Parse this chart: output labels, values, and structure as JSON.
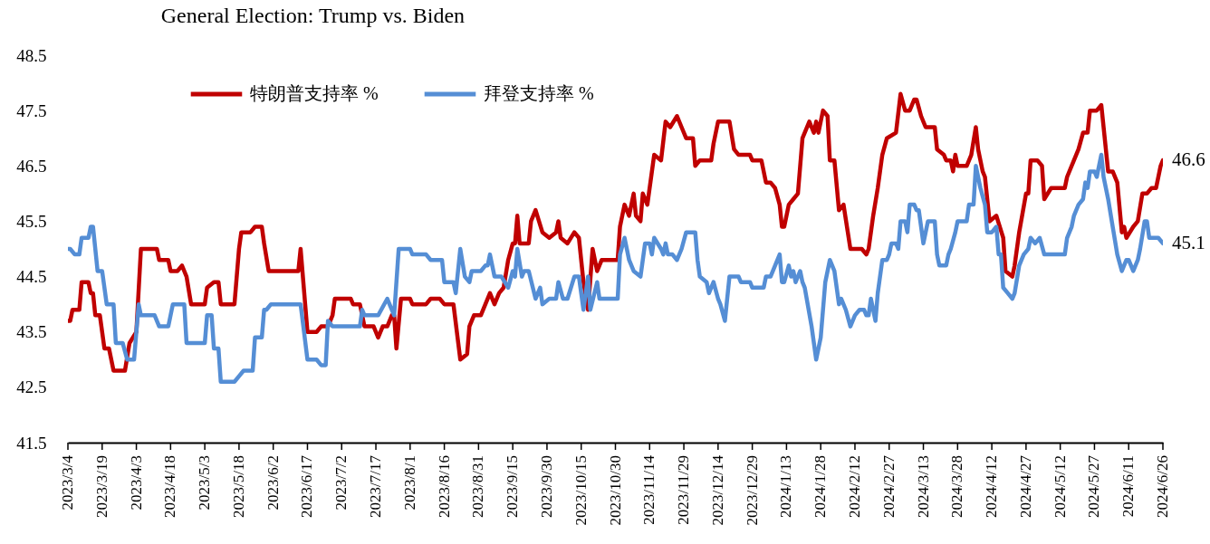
{
  "chart_data": {
    "type": "line",
    "title": "General Election: Trump vs. Biden",
    "xlim": [
      "2023-03-04",
      "2024-06-26"
    ],
    "xticks": [
      {
        "value": "2023-03-04",
        "label": "2023/3/4"
      },
      {
        "value": "2023-03-19",
        "label": "2023/3/19"
      },
      {
        "value": "2023-04-03",
        "label": "2023/4/3"
      },
      {
        "value": "2023-04-18",
        "label": "2023/4/18"
      },
      {
        "value": "2023-05-03",
        "label": "2023/5/3"
      },
      {
        "value": "2023-05-18",
        "label": "2023/5/18"
      },
      {
        "value": "2023-06-02",
        "label": "2023/6/2"
      },
      {
        "value": "2023-06-17",
        "label": "2023/6/17"
      },
      {
        "value": "2023-07-02",
        "label": "2023/7/2"
      },
      {
        "value": "2023-07-17",
        "label": "2023/7/17"
      },
      {
        "value": "2023-08-01",
        "label": "2023/8/1"
      },
      {
        "value": "2023-08-16",
        "label": "2023/8/16"
      },
      {
        "value": "2023-08-31",
        "label": "2023/8/31"
      },
      {
        "value": "2023-09-15",
        "label": "2023/9/15"
      },
      {
        "value": "2023-09-30",
        "label": "2023/9/30"
      },
      {
        "value": "2023-10-15",
        "label": "2023/10/15"
      },
      {
        "value": "2023-10-30",
        "label": "2023/10/30"
      },
      {
        "value": "2023-11-14",
        "label": "2023/11/14"
      },
      {
        "value": "2023-11-29",
        "label": "2023/11/29"
      },
      {
        "value": "2023-12-14",
        "label": "2023/12/14"
      },
      {
        "value": "2023-12-29",
        "label": "2023/12/29"
      },
      {
        "value": "2024-01-13",
        "label": "2024/1/13"
      },
      {
        "value": "2024-01-28",
        "label": "2024/1/28"
      },
      {
        "value": "2024-02-12",
        "label": "2024/2/12"
      },
      {
        "value": "2024-02-27",
        "label": "2024/2/27"
      },
      {
        "value": "2024-03-13",
        "label": "2024/3/13"
      },
      {
        "value": "2024-03-28",
        "label": "2024/3/28"
      },
      {
        "value": "2024-04-12",
        "label": "2024/4/12"
      },
      {
        "value": "2024-04-27",
        "label": "2024/4/27"
      },
      {
        "value": "2024-05-12",
        "label": "2024/5/12"
      },
      {
        "value": "2024-05-27",
        "label": "2024/5/27"
      },
      {
        "value": "2024-06-11",
        "label": "2024/6/11"
      },
      {
        "value": "2024-06-26",
        "label": "2024/6/26"
      }
    ],
    "ylim": [
      41.5,
      48.5
    ],
    "yticks": [
      41.5,
      42.5,
      43.5,
      44.5,
      45.5,
      46.5,
      47.5,
      48.5
    ],
    "legend": "top",
    "annotations": [
      {
        "text": "46.6",
        "x": "2024-06-26",
        "y": 46.6
      },
      {
        "text": "45.1",
        "x": "2024-06-26",
        "y": 45.1
      }
    ],
    "series": [
      {
        "name": "特朗普支持率 %",
        "color": "#c00000",
        "x": [
          "2023-03-04",
          "2023-03-05",
          "2023-03-06",
          "2023-03-09",
          "2023-03-10",
          "2023-03-13",
          "2023-03-14",
          "2023-03-15",
          "2023-03-16",
          "2023-03-18",
          "2023-03-20",
          "2023-03-22",
          "2023-03-24",
          "2023-03-29",
          "2023-03-31",
          "2023-04-03",
          "2023-04-05",
          "2023-04-12",
          "2023-04-13",
          "2023-04-17",
          "2023-04-18",
          "2023-04-21",
          "2023-04-23",
          "2023-04-25",
          "2023-04-27",
          "2023-05-03",
          "2023-05-04",
          "2023-05-07",
          "2023-05-09",
          "2023-05-10",
          "2023-05-16",
          "2023-05-18",
          "2023-05-19",
          "2023-05-23",
          "2023-05-25",
          "2023-05-28",
          "2023-05-29",
          "2023-05-31",
          "2023-06-13",
          "2023-06-14",
          "2023-06-16",
          "2023-06-17",
          "2023-06-21",
          "2023-06-23",
          "2023-06-26",
          "2023-06-28",
          "2023-06-29",
          "2023-07-06",
          "2023-07-07",
          "2023-07-10",
          "2023-07-12",
          "2023-07-16",
          "2023-07-18",
          "2023-07-20",
          "2023-07-22",
          "2023-07-24",
          "2023-07-25",
          "2023-07-26",
          "2023-07-28",
          "2023-08-01",
          "2023-08-02",
          "2023-08-08",
          "2023-08-10",
          "2023-08-14",
          "2023-08-16",
          "2023-08-20",
          "2023-08-23",
          "2023-08-26",
          "2023-08-27",
          "2023-08-29",
          "2023-09-01",
          "2023-09-03",
          "2023-09-05",
          "2023-09-07",
          "2023-09-09",
          "2023-09-11",
          "2023-09-13",
          "2023-09-15",
          "2023-09-16",
          "2023-09-17",
          "2023-09-18",
          "2023-09-22",
          "2023-09-23",
          "2023-09-25",
          "2023-09-28",
          "2023-10-01",
          "2023-10-04",
          "2023-10-05",
          "2023-10-06",
          "2023-10-09",
          "2023-10-12",
          "2023-10-14",
          "2023-10-16",
          "2023-10-18",
          "2023-10-20",
          "2023-10-22",
          "2023-10-24",
          "2023-10-31",
          "2023-11-01",
          "2023-11-03",
          "2023-11-05",
          "2023-11-07",
          "2023-11-08",
          "2023-11-10",
          "2023-11-11",
          "2023-11-13",
          "2023-11-16",
          "2023-11-19",
          "2023-11-21",
          "2023-11-23",
          "2023-11-26",
          "2023-11-28",
          "2023-11-30",
          "2023-12-03",
          "2023-12-04",
          "2023-12-06",
          "2023-12-11",
          "2023-12-12",
          "2023-12-14",
          "2023-12-19",
          "2023-12-21",
          "2023-12-23",
          "2023-12-28",
          "2023-12-29",
          "2024-01-02",
          "2024-01-04",
          "2024-01-06",
          "2024-01-08",
          "2024-01-10",
          "2024-01-11",
          "2024-01-12",
          "2024-01-14",
          "2024-01-16",
          "2024-01-18",
          "2024-01-20",
          "2024-01-23",
          "2024-01-25",
          "2024-01-26",
          "2024-01-27",
          "2024-01-29",
          "2024-01-31",
          "2024-02-01",
          "2024-02-03",
          "2024-02-05",
          "2024-02-07",
          "2024-02-10",
          "2024-02-15",
          "2024-02-17",
          "2024-02-18",
          "2024-02-20",
          "2024-02-22",
          "2024-02-24",
          "2024-02-26",
          "2024-03-01",
          "2024-03-03",
          "2024-03-05",
          "2024-03-07",
          "2024-03-09",
          "2024-03-10",
          "2024-03-12",
          "2024-03-14",
          "2024-03-18",
          "2024-03-19",
          "2024-03-22",
          "2024-03-23",
          "2024-03-25",
          "2024-03-26",
          "2024-03-27",
          "2024-03-28",
          "2024-04-01",
          "2024-04-03",
          "2024-04-05",
          "2024-04-06",
          "2024-04-08",
          "2024-04-09",
          "2024-04-11",
          "2024-04-14",
          "2024-04-17",
          "2024-04-18",
          "2024-04-21",
          "2024-04-22",
          "2024-04-24",
          "2024-04-27",
          "2024-04-28",
          "2024-04-29",
          "2024-05-02",
          "2024-05-04",
          "2024-05-05",
          "2024-05-08",
          "2024-05-14",
          "2024-05-15",
          "2024-05-18",
          "2024-05-20",
          "2024-05-22",
          "2024-05-24",
          "2024-05-25",
          "2024-05-28",
          "2024-05-30",
          "2024-05-31",
          "2024-06-02",
          "2024-06-04",
          "2024-06-06",
          "2024-06-08",
          "2024-06-09",
          "2024-06-10",
          "2024-06-13",
          "2024-06-15",
          "2024-06-17",
          "2024-06-19",
          "2024-06-21",
          "2024-06-23",
          "2024-06-25",
          "2024-06-26"
        ],
        "values": [
          43.7,
          43.7,
          43.9,
          43.9,
          44.4,
          44.4,
          44.2,
          44.2,
          43.8,
          43.8,
          43.2,
          43.2,
          42.8,
          42.8,
          43.3,
          43.5,
          45.0,
          45.0,
          44.8,
          44.8,
          44.6,
          44.6,
          44.7,
          44.5,
          44.0,
          44.0,
          44.3,
          44.4,
          44.4,
          44.0,
          44.0,
          45.0,
          45.3,
          45.3,
          45.4,
          45.4,
          45.1,
          44.6,
          44.6,
          45.0,
          44.0,
          43.5,
          43.5,
          43.6,
          43.6,
          43.8,
          44.1,
          44.1,
          44.0,
          44.0,
          43.6,
          43.6,
          43.4,
          43.6,
          43.6,
          43.8,
          43.8,
          43.2,
          44.1,
          44.1,
          44.0,
          44.0,
          44.1,
          44.1,
          44.0,
          44.0,
          43.0,
          43.1,
          43.6,
          43.8,
          43.8,
          44.0,
          44.2,
          44.0,
          44.2,
          44.3,
          44.8,
          45.1,
          45.1,
          45.6,
          45.1,
          45.1,
          45.5,
          45.7,
          45.3,
          45.2,
          45.3,
          45.5,
          45.2,
          45.1,
          45.3,
          45.2,
          44.4,
          43.9,
          45.0,
          44.6,
          44.8,
          44.8,
          45.4,
          45.8,
          45.6,
          46.0,
          45.6,
          45.5,
          46.0,
          45.8,
          46.7,
          46.6,
          47.3,
          47.2,
          47.4,
          47.2,
          47.0,
          47.0,
          46.5,
          46.6,
          46.6,
          46.9,
          47.3,
          47.3,
          46.8,
          46.7,
          46.7,
          46.6,
          46.6,
          46.2,
          46.2,
          46.1,
          45.8,
          45.4,
          45.4,
          45.8,
          45.9,
          46.0,
          47.0,
          47.3,
          47.1,
          47.3,
          47.1,
          47.5,
          47.4,
          46.6,
          46.6,
          45.7,
          45.8,
          45.0,
          45.0,
          44.9,
          45.0,
          45.6,
          46.1,
          46.7,
          47.0,
          47.1,
          47.8,
          47.5,
          47.5,
          47.7,
          47.7,
          47.4,
          47.2,
          47.2,
          46.8,
          46.7,
          46.6,
          46.6,
          46.4,
          46.7,
          46.5,
          46.5,
          46.7,
          47.2,
          46.8,
          46.4,
          46.3,
          45.5,
          45.6,
          45.2,
          44.6,
          44.5,
          44.7,
          45.3,
          46.0,
          46.0,
          46.6,
          46.6,
          46.5,
          45.9,
          46.1,
          46.1,
          46.3,
          46.6,
          46.8,
          47.1,
          47.1,
          47.5,
          47.5,
          47.6,
          47.2,
          46.4,
          46.4,
          46.2,
          45.3,
          45.4,
          45.2,
          45.4,
          45.5,
          46.0,
          46.0,
          46.1,
          46.1,
          46.5,
          46.6
        ]
      },
      {
        "name": "拜登支持率 %",
        "color": "#558ed5",
        "x": [
          "2023-03-04",
          "2023-03-05",
          "2023-03-07",
          "2023-03-09",
          "2023-03-10",
          "2023-03-13",
          "2023-03-14",
          "2023-03-15",
          "2023-03-17",
          "2023-03-19",
          "2023-03-21",
          "2023-03-24",
          "2023-03-25",
          "2023-03-28",
          "2023-03-30",
          "2023-04-02",
          "2023-04-03",
          "2023-04-04",
          "2023-04-05",
          "2023-04-11",
          "2023-04-13",
          "2023-04-17",
          "2023-04-19",
          "2023-04-24",
          "2023-04-25",
          "2023-05-03",
          "2023-05-04",
          "2023-05-06",
          "2023-05-07",
          "2023-05-09",
          "2023-05-10",
          "2023-05-16",
          "2023-05-18",
          "2023-05-20",
          "2023-05-24",
          "2023-05-25",
          "2023-05-28",
          "2023-05-29",
          "2023-05-30",
          "2023-06-01",
          "2023-06-14",
          "2023-06-17",
          "2023-06-21",
          "2023-06-23",
          "2023-06-25",
          "2023-06-26",
          "2023-06-28",
          "2023-07-06",
          "2023-07-10",
          "2023-07-11",
          "2023-07-12",
          "2023-07-18",
          "2023-07-22",
          "2023-07-25",
          "2023-07-27",
          "2023-08-01",
          "2023-08-02",
          "2023-08-08",
          "2023-08-10",
          "2023-08-15",
          "2023-08-16",
          "2023-08-20",
          "2023-08-21",
          "2023-08-23",
          "2023-08-25",
          "2023-08-27",
          "2023-08-28",
          "2023-09-01",
          "2023-09-03",
          "2023-09-04",
          "2023-09-05",
          "2023-09-07",
          "2023-09-10",
          "2023-09-13",
          "2023-09-15",
          "2023-09-16",
          "2023-09-17",
          "2023-09-19",
          "2023-09-20",
          "2023-09-22",
          "2023-09-25",
          "2023-09-27",
          "2023-09-28",
          "2023-10-01",
          "2023-10-04",
          "2023-10-05",
          "2023-10-07",
          "2023-10-09",
          "2023-10-12",
          "2023-10-14",
          "2023-10-16",
          "2023-10-18",
          "2023-10-19",
          "2023-10-22",
          "2023-10-23",
          "2023-10-31",
          "2023-11-01",
          "2023-11-03",
          "2023-11-05",
          "2023-11-07",
          "2023-11-10",
          "2023-11-12",
          "2023-11-14",
          "2023-11-15",
          "2023-11-16",
          "2023-11-19",
          "2023-11-20",
          "2023-11-21",
          "2023-11-22",
          "2023-11-24",
          "2023-11-26",
          "2023-11-28",
          "2023-11-30",
          "2023-12-04",
          "2023-12-05",
          "2023-12-06",
          "2023-12-09",
          "2023-12-10",
          "2023-12-12",
          "2023-12-14",
          "2023-12-15",
          "2023-12-17",
          "2023-12-19",
          "2023-12-23",
          "2023-12-24",
          "2023-12-28",
          "2023-12-29",
          "2024-01-03",
          "2024-01-04",
          "2024-01-06",
          "2024-01-08",
          "2024-01-10",
          "2024-01-11",
          "2024-01-12",
          "2024-01-14",
          "2024-01-15",
          "2024-01-16",
          "2024-01-17",
          "2024-01-19",
          "2024-01-20",
          "2024-01-21",
          "2024-01-24",
          "2024-01-26",
          "2024-01-28",
          "2024-01-30",
          "2024-02-01",
          "2024-02-03",
          "2024-02-05",
          "2024-02-06",
          "2024-02-08",
          "2024-02-10",
          "2024-02-12",
          "2024-02-14",
          "2024-02-16",
          "2024-02-17",
          "2024-02-18",
          "2024-02-19",
          "2024-02-20",
          "2024-02-21",
          "2024-02-22",
          "2024-02-24",
          "2024-02-26",
          "2024-02-27",
          "2024-02-28",
          "2024-03-01",
          "2024-03-02",
          "2024-03-03",
          "2024-03-05",
          "2024-03-06",
          "2024-03-07",
          "2024-03-09",
          "2024-03-10",
          "2024-03-11",
          "2024-03-13",
          "2024-03-15",
          "2024-03-18",
          "2024-03-19",
          "2024-03-20",
          "2024-03-23",
          "2024-03-24",
          "2024-03-25",
          "2024-03-27",
          "2024-03-28",
          "2024-04-01",
          "2024-04-02",
          "2024-04-04",
          "2024-04-05",
          "2024-04-07",
          "2024-04-09",
          "2024-04-10",
          "2024-04-12",
          "2024-04-14",
          "2024-04-15",
          "2024-04-16",
          "2024-04-17",
          "2024-04-19",
          "2024-04-21",
          "2024-04-22",
          "2024-04-24",
          "2024-04-26",
          "2024-04-28",
          "2024-04-29",
          "2024-05-01",
          "2024-05-03",
          "2024-05-05",
          "2024-05-14",
          "2024-05-15",
          "2024-05-17",
          "2024-05-18",
          "2024-05-20",
          "2024-05-22",
          "2024-05-23",
          "2024-05-24",
          "2024-05-25",
          "2024-05-27",
          "2024-05-28",
          "2024-05-30",
          "2024-05-31",
          "2024-06-02",
          "2024-06-04",
          "2024-06-06",
          "2024-06-08",
          "2024-06-10",
          "2024-06-11",
          "2024-06-13",
          "2024-06-15",
          "2024-06-16",
          "2024-06-18",
          "2024-06-19",
          "2024-06-20",
          "2024-06-24",
          "2024-06-26"
        ],
        "values": [
          45.0,
          45.0,
          44.9,
          44.9,
          45.2,
          45.2,
          45.4,
          45.4,
          44.6,
          44.6,
          44.0,
          44.0,
          43.3,
          43.3,
          43.0,
          43.0,
          43.5,
          44.0,
          43.8,
          43.8,
          43.6,
          43.6,
          44.0,
          44.0,
          43.3,
          43.3,
          43.8,
          43.8,
          43.2,
          43.2,
          42.6,
          42.6,
          42.7,
          42.8,
          42.8,
          43.4,
          43.4,
          43.9,
          43.9,
          44.0,
          44.0,
          43.0,
          43.0,
          42.9,
          42.9,
          43.7,
          43.6,
          43.6,
          43.6,
          43.9,
          43.8,
          43.8,
          44.1,
          43.8,
          45.0,
          45.0,
          44.9,
          44.9,
          44.8,
          44.8,
          44.4,
          44.4,
          44.2,
          45.0,
          44.5,
          44.4,
          44.6,
          44.6,
          44.7,
          44.7,
          44.9,
          44.5,
          44.5,
          44.3,
          44.6,
          44.5,
          45.0,
          44.5,
          44.6,
          44.6,
          44.1,
          44.3,
          44.0,
          44.1,
          44.1,
          44.4,
          44.1,
          44.1,
          44.5,
          44.5,
          43.9,
          44.5,
          43.9,
          44.4,
          44.1,
          44.1,
          44.9,
          45.2,
          44.8,
          44.6,
          44.5,
          45.1,
          45.1,
          44.9,
          45.2,
          45.0,
          44.9,
          45.1,
          44.9,
          44.9,
          44.8,
          45.0,
          45.3,
          45.3,
          44.8,
          44.5,
          44.4,
          44.2,
          44.4,
          44.1,
          44.0,
          43.7,
          44.5,
          44.5,
          44.4,
          44.4,
          44.3,
          44.3,
          44.5,
          44.5,
          44.7,
          44.9,
          44.4,
          44.4,
          44.7,
          44.5,
          44.6,
          44.4,
          44.6,
          44.4,
          44.3,
          43.6,
          43.0,
          43.4,
          44.4,
          44.8,
          44.6,
          44.0,
          44.1,
          43.9,
          43.6,
          43.8,
          43.9,
          43.9,
          43.8,
          43.8,
          44.1,
          43.9,
          43.7,
          44.2,
          44.8,
          44.8,
          44.9,
          45.1,
          45.1,
          45.0,
          45.5,
          45.5,
          45.3,
          45.8,
          45.8,
          45.7,
          45.7,
          45.1,
          45.5,
          45.5,
          44.9,
          44.7,
          44.7,
          44.9,
          45.0,
          45.3,
          45.5,
          45.5,
          45.8,
          45.8,
          46.5,
          46.1,
          45.8,
          45.3,
          45.3,
          45.4,
          44.9,
          44.9,
          44.3,
          44.2,
          44.1,
          44.2,
          44.7,
          44.9,
          45.0,
          45.2,
          45.1,
          45.2,
          44.9,
          44.9,
          45.2,
          45.4,
          45.6,
          45.8,
          45.9,
          46.2,
          46.1,
          46.4,
          46.4,
          46.3,
          46.7,
          46.3,
          45.9,
          45.4,
          44.9,
          44.6,
          44.8,
          44.8,
          44.6,
          44.8,
          45.0,
          45.5,
          45.5,
          45.2,
          45.2,
          45.1
        ]
      }
    ]
  }
}
